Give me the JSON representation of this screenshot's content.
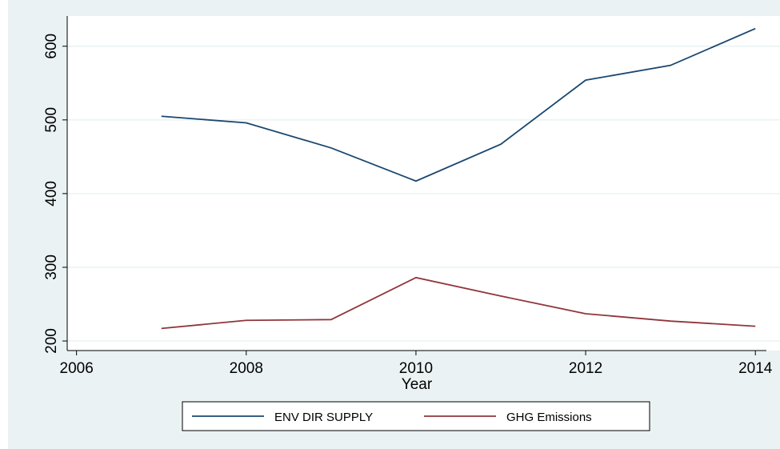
{
  "chart_data": {
    "type": "line",
    "x": [
      2007,
      2008,
      2009,
      2010,
      2011,
      2012,
      2013,
      2014
    ],
    "series": [
      {
        "name": "ENV DIR SUPPLY",
        "color": "#1a476f",
        "values": [
          505,
          496,
          462,
          417,
          467,
          554,
          574,
          624
        ]
      },
      {
        "name": "GHG Emissions",
        "color": "#90353b",
        "values": [
          217,
          228,
          229,
          286,
          261,
          237,
          227,
          220
        ]
      }
    ],
    "xlabel": "Year",
    "xlim": [
      2005.89,
      2014.13
    ],
    "xticks": [
      2006,
      2008,
      2010,
      2012,
      2014
    ],
    "ylim": [
      187,
      641
    ],
    "yticks": [
      200,
      300,
      400,
      500,
      600
    ],
    "grid": true,
    "legend": "bottom"
  }
}
